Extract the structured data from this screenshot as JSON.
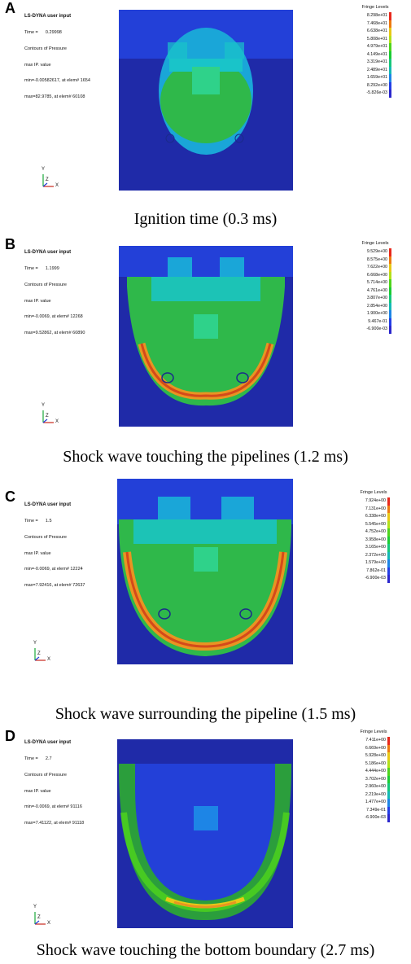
{
  "panels": [
    {
      "letter": "A",
      "info": {
        "title": "LS-DYNA user input",
        "time_line": "Time =      0.29998",
        "contour_line": "Contours of Pressure",
        "ip_line": "max IP. value",
        "min_line": "min=-0.00582617, at elem# 1654",
        "max_line": "max=82.9785, at elem# 60108"
      },
      "legend_title": "Fringe Levels",
      "legend_labels": [
        "8.298e+01",
        "7.468e+01",
        "6.638e+01",
        "5.808e+01",
        "4.979e+01",
        "4.149e+01",
        "3.319e+01",
        "2.489e+01",
        "1.659e+01",
        "8.292e+00",
        "-5.826e-03"
      ],
      "caption": "Ignition time (0.3 ms)"
    },
    {
      "letter": "B",
      "info": {
        "title": "LS-DYNA user input",
        "time_line": "Time =      1.1999",
        "contour_line": "Contours of Pressure",
        "ip_line": "max IP. value",
        "min_line": "min=-0.0069, at elem# 12268",
        "max_line": "max=9.52862, at elem# 60890"
      },
      "legend_title": "Fringe Levels",
      "legend_labels": [
        "9.529e+00",
        "8.575e+00",
        "7.622e+00",
        "6.668e+00",
        "5.714e+00",
        "4.761e+00",
        "3.807e+00",
        "2.854e+00",
        "1.900e+00",
        "9.467e-01",
        "-6.900e-03"
      ],
      "caption": "Shock wave touching the pipelines (1.2 ms)"
    },
    {
      "letter": "C",
      "info": {
        "title": "LS-DYNA user input",
        "time_line": "Time =      1.5",
        "contour_line": "Contours of Pressure",
        "ip_line": "max IP. value",
        "min_line": "min=-0.0069, at elem# 12224",
        "max_line": "max=7.92416, at elem# 72637"
      },
      "legend_title": "Fringe Levels",
      "legend_labels": [
        "7.924e+00",
        "7.131e+00",
        "6.338e+00",
        "5.545e+00",
        "4.752e+00",
        "3.958e+00",
        "3.165e+00",
        "2.372e+00",
        "1.579e+00",
        "7.862e-01",
        "-6.900e-03"
      ],
      "caption": "Shock wave surrounding the pipeline (1.5 ms)"
    },
    {
      "letter": "D",
      "info": {
        "title": "LS-DYNA user input",
        "time_line": "Time =      2.7",
        "contour_line": "Contours of Pressure",
        "ip_line": "max IP. value",
        "min_line": "min=-0.0069, at elem# 91116",
        "max_line": "max=7.41122, at elem# 91118"
      },
      "legend_title": "Fringe Levels",
      "legend_labels": [
        "7.411e+00",
        "6.669e+00",
        "5.928e+00",
        "5.186e+00",
        "4.444e+00",
        "3.702e+00",
        "2.960e+00",
        "2.219e+00",
        "1.477e+00",
        "7.349e-01",
        "-6.900e-03"
      ],
      "caption": "Shock wave touching the bottom boundary (2.7 ms)"
    }
  ],
  "axis_labels": {
    "y": "Y",
    "z": "Z",
    "x": "X"
  },
  "legend_colors": [
    "#e8281c",
    "#ee7a10",
    "#e8c817",
    "#b3e01a",
    "#4fd41c",
    "#1bcc33",
    "#17c77a",
    "#14b9b5",
    "#1d85e6",
    "#233ee6",
    "#2a26cc"
  ],
  "field_colors": {
    "background": "#1f2aa8",
    "upper_layer": "#2340d8",
    "cap": "#1aa6d8",
    "light_cap": "#19c4c9",
    "green": "#2fb84a",
    "dark_green": "#2b9e3c",
    "front_orange": "#e89422",
    "front_red": "#d44a1a",
    "box": "#2fd28a"
  }
}
